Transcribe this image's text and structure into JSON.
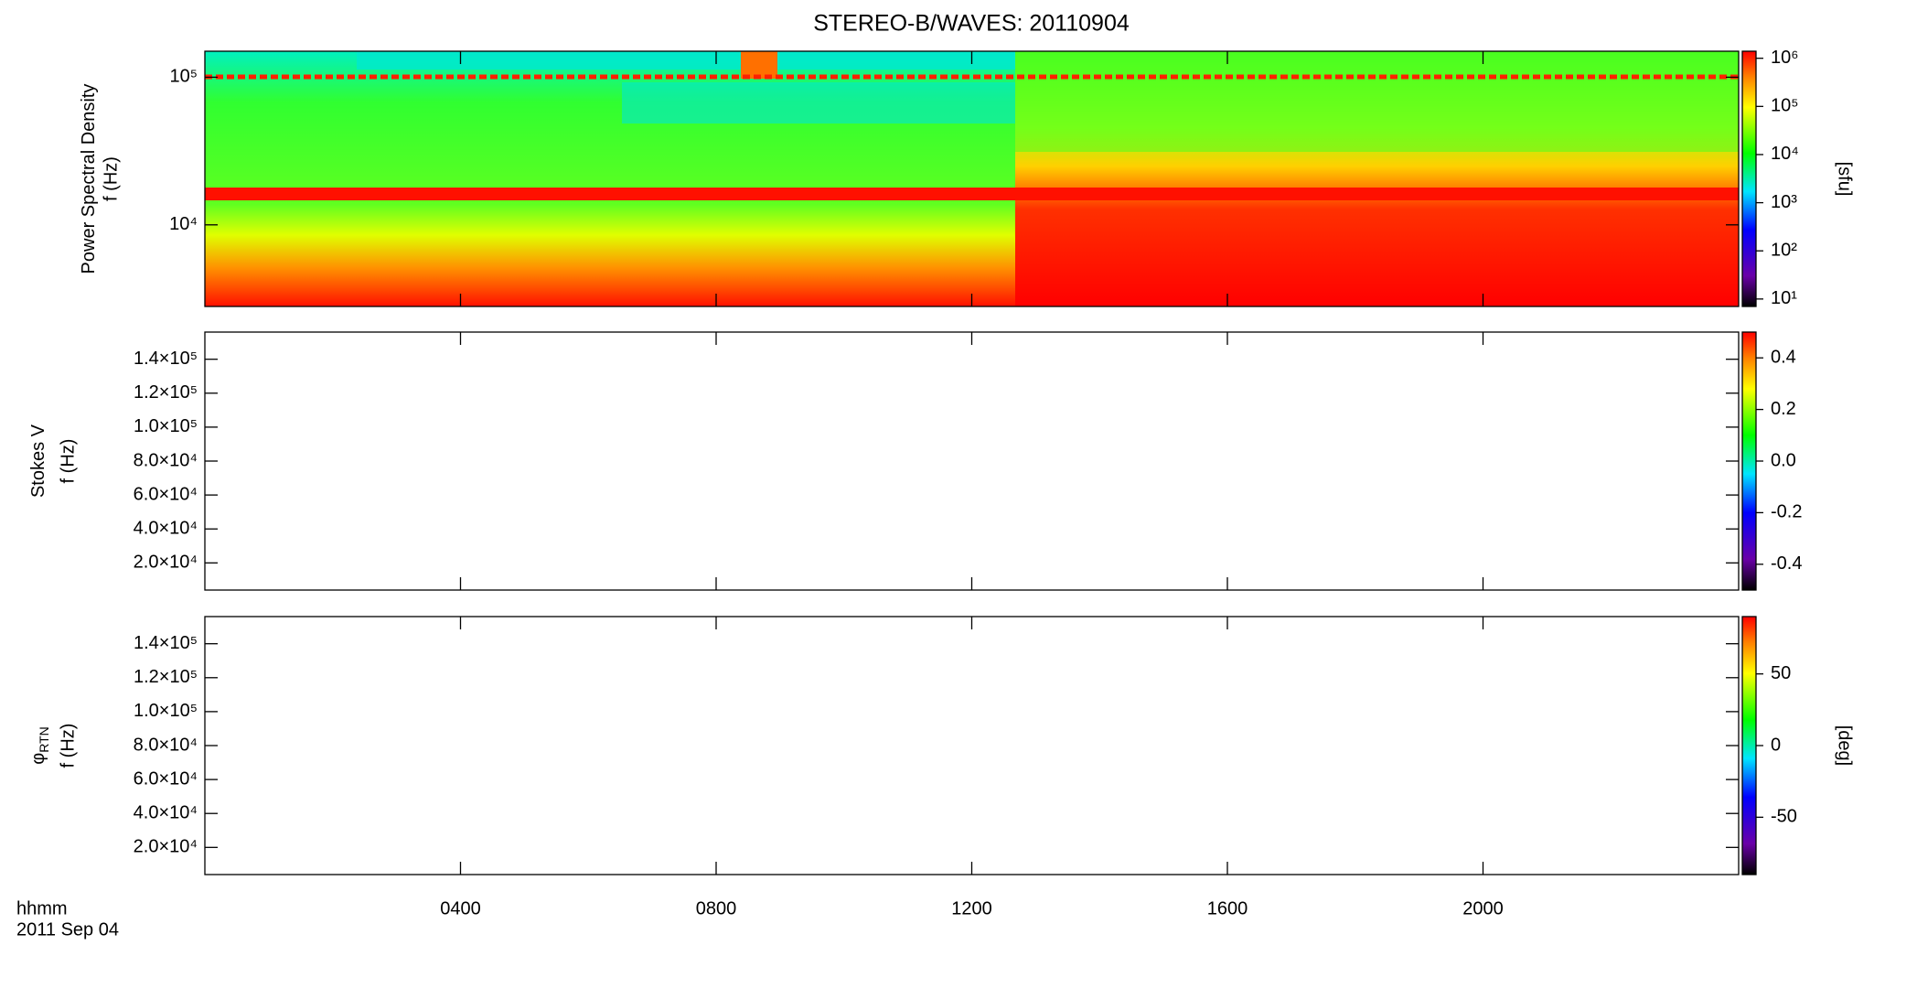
{
  "chart_data": {
    "type": "spectrogram",
    "title": "STEREO-B/WAVES: 20110904",
    "x_label": "hhmm",
    "date_label": "2011 Sep 04",
    "xlim": [
      0,
      24
    ],
    "xticks": [
      {
        "value": 4,
        "label": "0400"
      },
      {
        "value": 8,
        "label": "0800"
      },
      {
        "value": 12,
        "label": "1200"
      },
      {
        "value": 16,
        "label": "1600"
      },
      {
        "value": 20,
        "label": "2000"
      }
    ],
    "panels": [
      {
        "ylabel": "Power Spectral Density",
        "ylabel2": "f (Hz)",
        "log_scale": true,
        "ylim": [
          2800,
          150000
        ],
        "yticks": [
          {
            "value": 10000,
            "label": "10⁴"
          },
          {
            "value": 100000,
            "label": "10⁵"
          }
        ],
        "clabel": "[sfu]",
        "clog": true,
        "clim": [
          7,
          1400000
        ],
        "cticks": [
          {
            "value": 10,
            "label": "10¹"
          },
          {
            "value": 100,
            "label": "10²"
          },
          {
            "value": 1000,
            "label": "10³"
          },
          {
            "value": 10000,
            "label": "10⁴"
          },
          {
            "value": 100000,
            "label": "10⁵"
          },
          {
            "value": 1000000,
            "label": "10⁶"
          }
        ]
      },
      {
        "ylabel": "Stokes V",
        "ylabel2": "f (Hz)",
        "log_scale": false,
        "ylim": [
          4000,
          156000
        ],
        "yticks": [
          {
            "value": 20000,
            "label": "2.0×10⁴"
          },
          {
            "value": 40000,
            "label": "4.0×10⁴"
          },
          {
            "value": 60000,
            "label": "6.0×10⁴"
          },
          {
            "value": 80000,
            "label": "8.0×10⁴"
          },
          {
            "value": 100000,
            "label": "1.0×10⁵"
          },
          {
            "value": 120000,
            "label": "1.2×10⁵"
          },
          {
            "value": 140000,
            "label": "1.4×10⁵"
          }
        ],
        "clog": false,
        "clim": [
          -0.5,
          0.5
        ],
        "cticks": [
          -0.4,
          -0.2,
          {
            "value": 0,
            "label": "0.0"
          },
          0.2,
          0.4
        ]
      },
      {
        "ylabel": "φ",
        "ylabel_sub": "RTN",
        "ylabel2": "f (Hz)",
        "log_scale": false,
        "ylim": [
          4000,
          156000
        ],
        "yticks": [
          {
            "value": 20000,
            "label": "2.0×10⁴"
          },
          {
            "value": 40000,
            "label": "4.0×10⁴"
          },
          {
            "value": 60000,
            "label": "6.0×10⁴"
          },
          {
            "value": 80000,
            "label": "8.0×10⁴"
          },
          {
            "value": 100000,
            "label": "1.0×10⁵"
          },
          {
            "value": 120000,
            "label": "1.2×10⁵"
          },
          {
            "value": 140000,
            "label": "1.4×10⁵"
          }
        ],
        "clabel": "[deg]",
        "clog": false,
        "clim": [
          -90,
          90
        ],
        "cticks": [
          -50,
          0,
          50
        ]
      }
    ]
  }
}
